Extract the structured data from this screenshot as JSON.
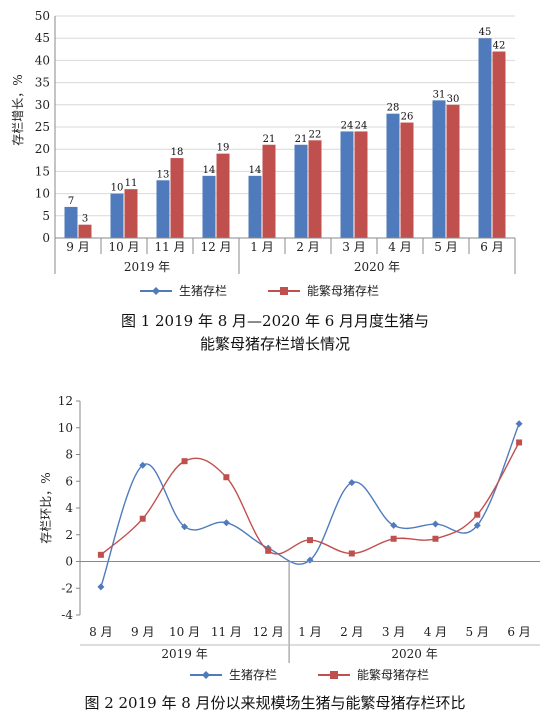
{
  "chart_data": [
    {
      "type": "bar",
      "categories": [
        "9 月",
        "10 月",
        "11 月",
        "12 月",
        "1 月",
        "2 月",
        "3 月",
        "4 月",
        "5 月",
        "6 月"
      ],
      "groups": [
        {
          "label": "2019 年",
          "count": 4
        },
        {
          "label": "2020 年",
          "count": 6
        }
      ],
      "series": [
        {
          "name": "生猪存栏",
          "color": "#4f7bbd",
          "values": [
            7,
            10,
            13,
            14,
            14,
            21,
            24,
            28,
            31,
            45
          ]
        },
        {
          "name": "能繁母猪存栏",
          "color": "#c0504d",
          "values": [
            3,
            11,
            18,
            19,
            21,
            22,
            24,
            26,
            30,
            42
          ]
        }
      ],
      "ylabel": "存栏增长，%",
      "ylim": [
        0,
        50
      ],
      "yticks": [
        0,
        5,
        10,
        15,
        20,
        25,
        30,
        35,
        40,
        45,
        50
      ],
      "grid": true,
      "legend": "bottom",
      "caption_line1": "图 1   2019 年 8 月—2020 年 6 月月度生猪与",
      "caption_line2": "能繁母猪存栏增长情况"
    },
    {
      "type": "line",
      "categories": [
        "8 月",
        "9 月",
        "10 月",
        "11 月",
        "12 月",
        "1 月",
        "2 月",
        "3 月",
        "4 月",
        "5 月",
        "6 月"
      ],
      "groups": [
        {
          "label": "2019 年",
          "count": 5
        },
        {
          "label": "2020 年",
          "count": 6
        }
      ],
      "series": [
        {
          "name": "生猪存栏",
          "color": "#4f7bbd",
          "marker": "diamond",
          "values": [
            -1.9,
            7.2,
            2.6,
            2.9,
            1.0,
            0.1,
            5.9,
            2.7,
            2.8,
            2.7,
            10.3
          ]
        },
        {
          "name": "能繁母猪存栏",
          "color": "#c0504d",
          "marker": "square",
          "values": [
            0.5,
            3.2,
            7.5,
            6.3,
            0.8,
            1.6,
            0.6,
            1.7,
            1.7,
            3.5,
            8.9
          ]
        }
      ],
      "ylabel": "存栏环比，%",
      "ylim": [
        -4,
        12
      ],
      "yticks": [
        -4,
        -2,
        0,
        2,
        4,
        6,
        8,
        10,
        12
      ],
      "grid": false,
      "legend": "bottom",
      "caption": "图 2  2019 年 8 月份以来规模场生猪与能繁母猪存栏环比"
    }
  ]
}
